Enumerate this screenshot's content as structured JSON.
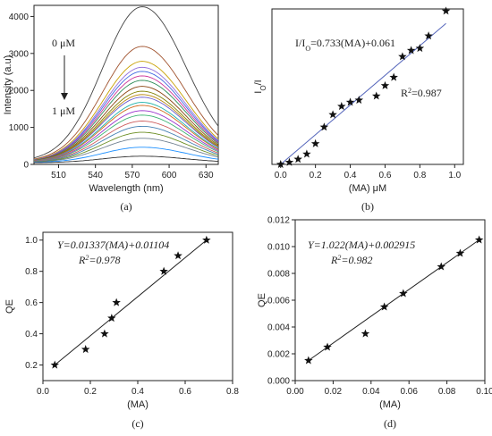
{
  "chart_data": [
    {
      "id": "a",
      "type": "line",
      "sublabel": "(a)",
      "xlabel": "Wavelength (nm)",
      "ylabel": "Intensity (a.u)",
      "xlim": [
        490,
        640
      ],
      "ylim": [
        0,
        4300
      ],
      "xticks": [
        510,
        540,
        570,
        600,
        630
      ],
      "yticks": [
        0,
        1000,
        2000,
        3000,
        4000
      ],
      "peak_wavelength": 578,
      "peak_intensities": [
        4180,
        3120,
        2720,
        2560,
        2450,
        2330,
        2210,
        2050,
        1920,
        1830,
        1760,
        1620,
        1540,
        1400,
        1280,
        1120,
        980,
        820,
        660,
        420,
        180
      ],
      "series_colors": [
        "#444444",
        "#a0522d",
        "#c8a000",
        "#9370db",
        "#4169e1",
        "#cc3399",
        "#2e8b57",
        "#8b4513",
        "#808000",
        "#b8860b",
        "#6a5acd",
        "#20b2aa",
        "#d2691e",
        "#9932cc",
        "#3cb371",
        "#cd5c5c",
        "#4682b4",
        "#6b8e23",
        "#708090",
        "#1e90ff",
        "#333333"
      ],
      "annotations": [
        {
          "text": "0 μM"
        },
        {
          "text": "1 μM"
        }
      ]
    },
    {
      "id": "b",
      "type": "scatter",
      "sublabel": "(b)",
      "xlabel": "(MA) μM",
      "ylabel": "IO/I",
      "xlim": [
        -0.05,
        1.05
      ],
      "xticks": [
        0.0,
        0.2,
        0.4,
        0.6,
        0.8,
        1.0
      ],
      "tick_labels": [
        "0.0",
        "0.2",
        "0.4",
        "0.6",
        "0.8",
        "1.0"
      ],
      "ylim": [
        0.0,
        0.75
      ],
      "points": [
        [
          0.0,
          0.0
        ],
        [
          0.05,
          0.01
        ],
        [
          0.1,
          0.025
        ],
        [
          0.15,
          0.05
        ],
        [
          0.2,
          0.1
        ],
        [
          0.25,
          0.18
        ],
        [
          0.3,
          0.24
        ],
        [
          0.35,
          0.28
        ],
        [
          0.4,
          0.3
        ],
        [
          0.45,
          0.31
        ],
        [
          0.55,
          0.33
        ],
        [
          0.6,
          0.38
        ],
        [
          0.65,
          0.42
        ],
        [
          0.7,
          0.52
        ],
        [
          0.75,
          0.55
        ],
        [
          0.8,
          0.56
        ],
        [
          0.85,
          0.62
        ],
        [
          0.95,
          0.74
        ]
      ],
      "fit_line": [
        [
          0.0,
          0.0
        ],
        [
          0.95,
          0.68
        ]
      ],
      "line_color": "#5566bb",
      "equation": "I/IO=0.733(MA)+0.061",
      "r2": "R2=0.987"
    },
    {
      "id": "c",
      "type": "scatter",
      "sublabel": "(c)",
      "xlabel": "(MA)",
      "ylabel": "QE",
      "xlim": [
        0.0,
        0.8
      ],
      "ylim": [
        0.1,
        1.05
      ],
      "xticks": [
        0.0,
        0.2,
        0.4,
        0.6,
        0.8
      ],
      "yticks": [
        0.2,
        0.4,
        0.6,
        0.8,
        1.0
      ],
      "points": [
        [
          0.05,
          0.2
        ],
        [
          0.18,
          0.3
        ],
        [
          0.26,
          0.4
        ],
        [
          0.29,
          0.5
        ],
        [
          0.31,
          0.6
        ],
        [
          0.51,
          0.8
        ],
        [
          0.57,
          0.9
        ],
        [
          0.69,
          1.0
        ]
      ],
      "fit_line": [
        [
          0.05,
          0.2
        ],
        [
          0.69,
          1.0
        ]
      ],
      "line_color": "#222222",
      "equation": "Y=0.01337(MA)+0.01104",
      "r2": "R2=0.978"
    },
    {
      "id": "d",
      "type": "scatter",
      "sublabel": "(d)",
      "xlabel": "(MA)",
      "ylabel": "QE",
      "xlim": [
        0.0,
        0.1
      ],
      "ylim": [
        0.0,
        0.012
      ],
      "xticks": [
        0.0,
        0.02,
        0.04,
        0.06,
        0.08,
        0.1
      ],
      "yticks": [
        0.0,
        0.002,
        0.004,
        0.006,
        0.008,
        0.01,
        0.012
      ],
      "tick_labels_x": [
        "0.00",
        "0.02",
        "0.04",
        "0.06",
        "0.08",
        "0.10"
      ],
      "tick_labels_y": [
        "0.000",
        "0.002",
        "0.004",
        "0.006",
        "0.008",
        "0.010",
        "0.012"
      ],
      "points": [
        [
          0.007,
          0.0015
        ],
        [
          0.017,
          0.0025
        ],
        [
          0.037,
          0.0035
        ],
        [
          0.047,
          0.0055
        ],
        [
          0.057,
          0.0065
        ],
        [
          0.077,
          0.0085
        ],
        [
          0.087,
          0.0095
        ],
        [
          0.097,
          0.0105
        ]
      ],
      "fit_line": [
        [
          0.007,
          0.0015
        ],
        [
          0.097,
          0.0105
        ]
      ],
      "line_color": "#222222",
      "equation": "Y=1.022(MA)+0.002915",
      "r2": "R2=0.982"
    }
  ]
}
